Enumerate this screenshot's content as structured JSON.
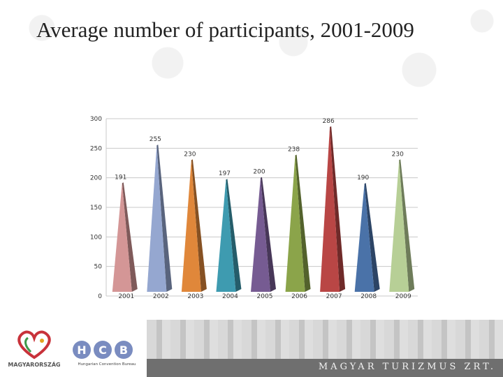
{
  "title": "Average number of participants, 2001-2009",
  "chart_data": {
    "type": "bar",
    "title": "Average number of participants, 2001-2009",
    "categories": [
      "2001",
      "2002",
      "2003",
      "2004",
      "2005",
      "2006",
      "2007",
      "2008",
      "2009"
    ],
    "values": [
      191,
      255,
      230,
      197,
      200,
      238,
      286,
      190,
      230
    ],
    "yticks": [
      0,
      50,
      100,
      150,
      200,
      250,
      300
    ],
    "ylim": [
      0,
      300
    ],
    "xlabel": "",
    "ylabel": "",
    "grid": true,
    "colors": [
      "#d49696",
      "#95a7d0",
      "#e0873a",
      "#3e9bb0",
      "#765b92",
      "#8ba44a",
      "#b94645",
      "#4a72a8",
      "#b7cf96"
    ]
  },
  "footer": {
    "brand_text": "MAGYAR TURIZMUS ZRT.",
    "logo_left_text": "MAGYARORSZÁG",
    "hcb_letters": [
      "H",
      "C",
      "B"
    ],
    "hcb_subtitle": "Hungarian Convention Bureau"
  }
}
